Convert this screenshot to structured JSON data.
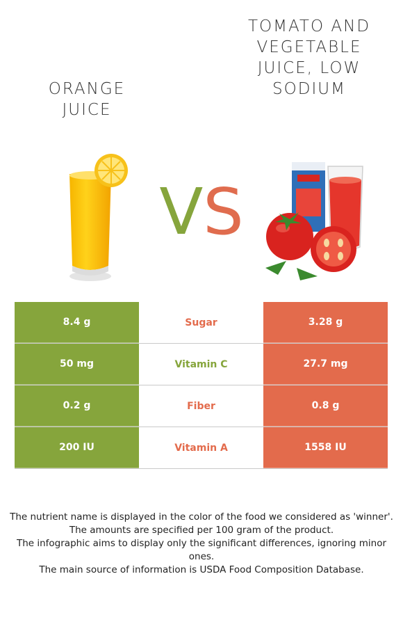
{
  "foods": {
    "left": {
      "name": "Orange juice",
      "color": "#86a53c"
    },
    "right": {
      "name": "Tomato and vegetable juice, low sodium",
      "color": "#e36b4c"
    }
  },
  "vs": {
    "v": "V",
    "s": "S"
  },
  "nutrients": [
    {
      "name": "Sugar",
      "left": "8.4 g",
      "right": "3.28 g",
      "winner": "right"
    },
    {
      "name": "Vitamin C",
      "left": "50 mg",
      "right": "27.7 mg",
      "winner": "left"
    },
    {
      "name": "Fiber",
      "left": "0.2 g",
      "right": "0.8 g",
      "winner": "right"
    },
    {
      "name": "Vitamin A",
      "left": "200 IU",
      "right": "1558 IU",
      "winner": "right"
    }
  ],
  "footer": [
    "The nutrient name is displayed in the color of the food we considered as 'winner'.",
    "The amounts are specified per 100 gram of the product.",
    "The infographic aims to display only the significant differences, ignoring minor ones.",
    "The main source of information is USDA Food Composition Database."
  ]
}
